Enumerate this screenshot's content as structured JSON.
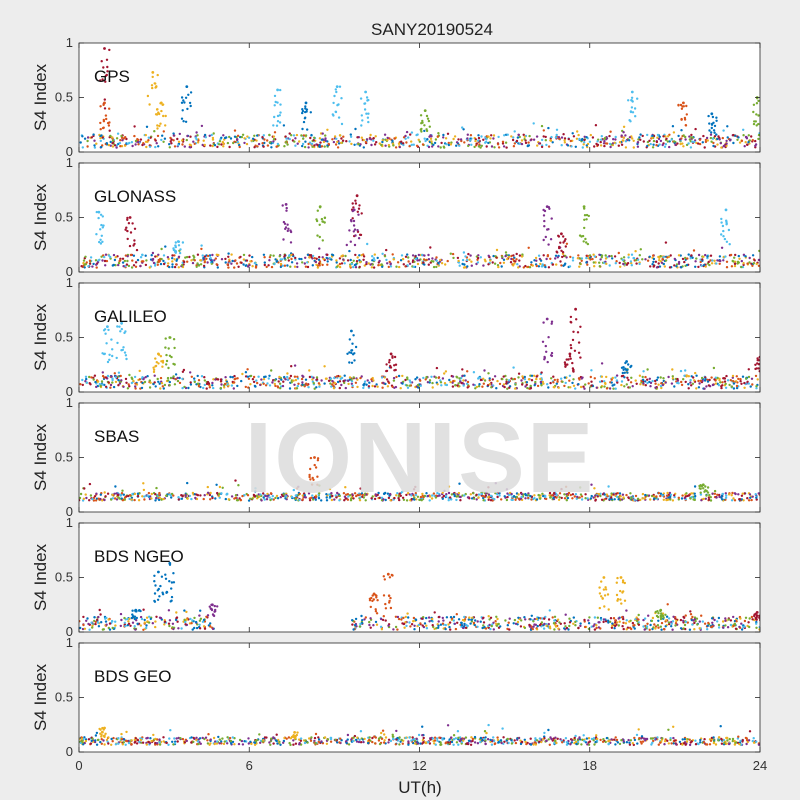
{
  "chart_data": {
    "type": "scatter",
    "title": "SANY20190524",
    "xlabel": "UT(h)",
    "ylabel": "S4 Index",
    "xlim": [
      0,
      24
    ],
    "ylim": [
      0,
      1
    ],
    "xticks": [
      "0",
      "6",
      "12",
      "18",
      "24"
    ],
    "yticks": [
      "0",
      "0.5",
      "1"
    ],
    "watermark": "IONISE",
    "colors": [
      "#0072BD",
      "#D95319",
      "#EDB120",
      "#7E2F8E",
      "#77AC30",
      "#4DBEEE",
      "#A2142F"
    ],
    "panels": [
      {
        "label": "GPS",
        "baseline": 0.1,
        "spikes": [
          [
            0.9,
            0.95,
            6
          ],
          [
            0.9,
            0.45,
            1
          ],
          [
            2.6,
            0.73,
            2
          ],
          [
            2.9,
            0.45,
            2
          ],
          [
            3.8,
            0.6,
            0
          ],
          [
            7.0,
            0.57,
            5
          ],
          [
            8.0,
            0.45,
            0
          ],
          [
            9.1,
            0.6,
            5
          ],
          [
            10.1,
            0.55,
            5
          ],
          [
            12.2,
            0.38,
            4
          ],
          [
            19.5,
            0.55,
            5
          ],
          [
            21.3,
            0.45,
            1
          ],
          [
            22.3,
            0.35,
            0
          ],
          [
            23.9,
            0.5,
            4
          ]
        ]
      },
      {
        "label": "GLONASS",
        "baseline": 0.1,
        "spikes": [
          [
            0.7,
            0.55,
            5
          ],
          [
            1.8,
            0.5,
            6
          ],
          [
            3.5,
            0.28,
            5
          ],
          [
            7.3,
            0.62,
            3
          ],
          [
            8.5,
            0.6,
            4
          ],
          [
            9.8,
            0.7,
            6
          ],
          [
            9.7,
            0.57,
            3
          ],
          [
            16.5,
            0.6,
            3
          ],
          [
            17.0,
            0.35,
            6
          ],
          [
            17.8,
            0.6,
            4
          ],
          [
            22.8,
            0.57,
            5
          ]
        ]
      },
      {
        "label": "GALILEO",
        "baseline": 0.09,
        "spikes": [
          [
            1.0,
            0.6,
            5
          ],
          [
            1.5,
            0.63,
            5
          ],
          [
            2.8,
            0.35,
            2
          ],
          [
            3.2,
            0.5,
            4
          ],
          [
            9.6,
            0.56,
            0
          ],
          [
            11.0,
            0.35,
            6
          ],
          [
            16.5,
            0.67,
            3
          ],
          [
            17.5,
            0.76,
            6
          ],
          [
            17.3,
            0.35,
            6
          ],
          [
            19.3,
            0.28,
            0
          ],
          [
            24.0,
            0.32,
            6
          ]
        ]
      },
      {
        "label": "SBAS",
        "baseline": 0.14,
        "spikes": [
          [
            8.3,
            0.5,
            1
          ],
          [
            22.0,
            0.25,
            4
          ]
        ]
      },
      {
        "label": "BDS NGEO",
        "baseline": 0.08,
        "spikes": [
          [
            2.0,
            0.2,
            0
          ],
          [
            2.8,
            0.55,
            0
          ],
          [
            3.2,
            0.63,
            0
          ],
          [
            4.7,
            0.25,
            3
          ],
          [
            10.4,
            0.35,
            1
          ],
          [
            10.9,
            0.53,
            1
          ],
          [
            18.5,
            0.5,
            2
          ],
          [
            19.1,
            0.5,
            2
          ],
          [
            20.5,
            0.2,
            4
          ],
          [
            23.9,
            0.18,
            6
          ]
        ]
      },
      {
        "label": "BDS GEO",
        "baseline": 0.1,
        "spikes": [
          [
            0.9,
            0.22,
            2
          ],
          [
            7.6,
            0.18,
            2
          ]
        ]
      }
    ]
  }
}
